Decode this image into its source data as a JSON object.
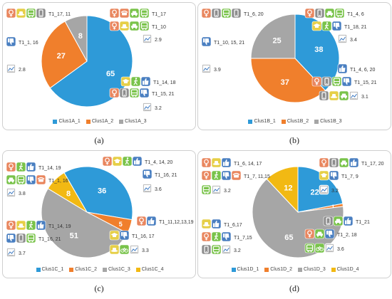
{
  "colors": {
    "series_1": "#2e9ad8",
    "series_2": "#f07f2c",
    "series_3": "#a6a6a6",
    "series_4": "#f2b913",
    "icon_fem": "#e9865e",
    "icon_yel": "#e6cf48",
    "icon_grn": "#79c34a",
    "icon_gry": "#8d8d8d",
    "icon_blu": "#4a7fc1"
  },
  "chart_data": [
    {
      "type": "pie",
      "panel": "a",
      "caption": "(a)",
      "series": [
        {
          "name": "Clus1A_1",
          "value": 65
        },
        {
          "name": "Clus1A_2",
          "value": 27
        },
        {
          "name": "Clus1A_3",
          "value": 8
        }
      ],
      "annotations": [
        {
          "text": "T1_17",
          "icons": [
            "female-icon",
            "telephone-icon",
            "car-icon",
            "bus-icon"
          ]
        },
        {
          "text": "T1_10",
          "icons": [
            "female-icon",
            "hat-icon",
            "car-icon",
            "bus-icon"
          ]
        },
        {
          "text": "2.9",
          "icons": [
            "chart-icon"
          ]
        },
        {
          "text": "T1_17, 11",
          "icons": [
            "female-icon",
            "hat-icon",
            "bus-icon",
            "phone-icon",
            "car-icon",
            "walk-icon",
            "thumbs-up-icon"
          ]
        },
        {
          "text": "T1_1, 16",
          "icons": [
            "thumbs-down-icon"
          ]
        },
        {
          "text": "2.8",
          "icons": [
            "chart-icon"
          ]
        },
        {
          "text": "T1_14, 18",
          "icons": [
            "graduation-icon",
            "walk-icon",
            "thumbs-up-icon"
          ]
        },
        {
          "text": "T1_15, 21",
          "icons": [
            "female-icon",
            "phone-icon",
            "bus-icon",
            "thumbs-down-icon"
          ]
        },
        {
          "text": "3.2",
          "icons": [
            "chart-icon"
          ]
        }
      ]
    },
    {
      "type": "pie",
      "panel": "b",
      "caption": "(b)",
      "series": [
        {
          "name": "Clus1B_1",
          "value": 38
        },
        {
          "name": "Clus1B_2",
          "value": 37
        },
        {
          "name": "Clus1B_3",
          "value": 25
        }
      ],
      "annotations": [
        {
          "text": "T1_4, 6",
          "icons": [
            "female-icon",
            "phone-icon",
            "car-icon",
            "bus-icon",
            "thumbs-up-icon"
          ]
        },
        {
          "text": "T1_18, 21",
          "icons": [
            "graduation-icon",
            "walk-icon",
            "thumbs-down-icon"
          ]
        },
        {
          "text": "3.4",
          "icons": [
            "chart-icon"
          ]
        },
        {
          "text": "T1_6, 20",
          "icons": [
            "female-icon",
            "phone-icon",
            "bus-icon",
            "phone-icon",
            "hat-icon",
            "thumbs-up-icon"
          ]
        },
        {
          "text": "T1_10, 15, 21",
          "icons": [
            "thumbs-down-icon"
          ]
        },
        {
          "text": "3.9",
          "icons": [
            "chart-icon"
          ]
        },
        {
          "text": "T1_4, 6, 20",
          "icons": [
            "thumbs-up-icon"
          ]
        },
        {
          "text": "T1_15, 21",
          "icons": [
            "female-icon",
            "phone-icon",
            "bus-icon",
            "thumbs-down-icon"
          ]
        },
        {
          "text": "3.1",
          "icons": [
            "phone-icon",
            "hat-icon",
            "car-icon",
            "chart-icon"
          ]
        }
      ]
    },
    {
      "type": "pie",
      "panel": "c",
      "caption": "(c)",
      "series": [
        {
          "name": "Clus1C_1",
          "value": 36
        },
        {
          "name": "Clus1C_2",
          "value": 5
        },
        {
          "name": "Clus1C_3",
          "value": 51
        },
        {
          "name": "Clus1C_4",
          "value": 8
        }
      ],
      "annotations": [
        {
          "text": "T1_14, 19",
          "icons": [
            "female-icon",
            "walk-icon",
            "thumbs-up-icon"
          ]
        },
        {
          "text": "T1_1, 16",
          "icons": [
            "car-icon",
            "bus-icon",
            "thumbs-down-icon",
            "telephone-icon"
          ]
        },
        {
          "text": "3.8",
          "icons": [
            "chart-icon"
          ]
        },
        {
          "text": "T1_4, 14, 20",
          "icons": [
            "female-icon",
            "graduation-icon",
            "walk-icon",
            "thumbs-up-icon"
          ]
        },
        {
          "text": "T1_16, 21",
          "icons": [
            "thumbs-down-icon"
          ]
        },
        {
          "text": "3.6",
          "icons": [
            "chart-icon"
          ]
        },
        {
          "text": "T1_14, 19",
          "icons": [
            "female-icon",
            "hat-icon",
            "walk-icon",
            "thumbs-up-icon"
          ]
        },
        {
          "text": "T1_16, 21",
          "icons": [
            "thumbs-down-icon",
            "phone-icon",
            "bus-icon"
          ]
        },
        {
          "text": "3.7",
          "icons": [
            "chart-icon"
          ]
        },
        {
          "text": "T1_11,12,13,19",
          "icons": [
            "female-icon",
            "thumbs-up-icon"
          ]
        },
        {
          "text": "T1_16, 17",
          "icons": [
            "graduation-icon",
            "thumbs-down-icon"
          ]
        },
        {
          "text": "3.3",
          "icons": [
            "hat-icon",
            "bicycle-icon",
            "chart-icon"
          ]
        }
      ]
    },
    {
      "type": "pie",
      "panel": "d",
      "caption": "(d)",
      "series": [
        {
          "name": "Clus1D_1",
          "value": 22
        },
        {
          "name": "Clus1D_2",
          "value": 1
        },
        {
          "name": "Clus1D_3",
          "value": 65
        },
        {
          "name": "Clus1D_4",
          "value": 12
        }
      ],
      "annotations": [
        {
          "text": "T1_6, 14, 17",
          "icons": [
            "female-icon",
            "hat-icon",
            "thumbs-up-icon"
          ]
        },
        {
          "text": "T1_7, 11,15",
          "icons": [
            "female-icon",
            "walk-icon",
            "thumbs-down-icon",
            "telephone-icon"
          ]
        },
        {
          "text": "3.2",
          "icons": [
            "bus-icon",
            "chart-icon"
          ]
        },
        {
          "text": "T1_17, 20",
          "icons": [
            "female-icon",
            "phone-icon",
            "car-icon",
            "thumbs-up-icon"
          ]
        },
        {
          "text": "T1_7, 9",
          "icons": [
            "graduation-icon",
            "thumbs-down-icon"
          ]
        },
        {
          "text": "3.2",
          "icons": [
            "chart-icon"
          ]
        },
        {
          "text": "T1_6,17",
          "icons": [
            "hat-icon",
            "thumbs-up-icon"
          ]
        },
        {
          "text": "T1_7,15",
          "icons": [
            "female-icon",
            "walk-icon",
            "thumbs-down-icon"
          ]
        },
        {
          "text": "3.2",
          "icons": [
            "phone-icon",
            "bus-icon",
            "chart-icon"
          ]
        },
        {
          "text": "T1_21",
          "icons": [
            "phone-icon",
            "car-icon",
            "thumbs-up-icon"
          ]
        },
        {
          "text": "T1_2, 18",
          "icons": [
            "female-icon",
            "car-icon",
            "thumbs-down-icon"
          ]
        },
        {
          "text": "3.6",
          "icons": [
            "bus-icon",
            "bicycle-icon",
            "chart-icon"
          ]
        }
      ]
    }
  ]
}
